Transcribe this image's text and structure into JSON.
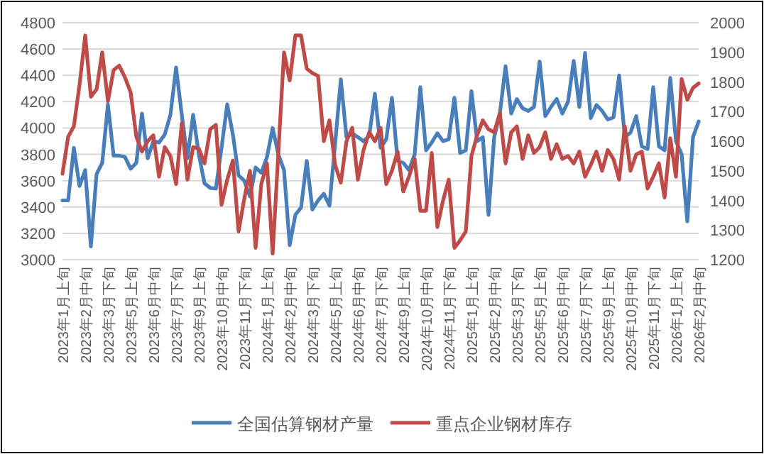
{
  "chart_data": {
    "type": "line",
    "categories": [
      "2023年1月上旬",
      null,
      null,
      null,
      "2023年2月中旬",
      null,
      null,
      null,
      "2023年3月下旬",
      null,
      null,
      null,
      "2023年5月上旬",
      null,
      null,
      null,
      "2023年6月中旬",
      null,
      null,
      null,
      "2023年7月下旬",
      null,
      null,
      null,
      "2023年9月上旬",
      null,
      null,
      null,
      "2023年10月中旬",
      null,
      null,
      null,
      "2023年11月下旬",
      null,
      null,
      null,
      "2024年1月上旬",
      null,
      null,
      null,
      "2024年2月中旬",
      null,
      null,
      null,
      "2024年3月下旬",
      null,
      null,
      null,
      "2024年5月上旬",
      null,
      null,
      null,
      "2024年6月中旬",
      null,
      null,
      null,
      "2024年7月下旬",
      null,
      null,
      null,
      "2024年9月上旬",
      null,
      null,
      null,
      "2024年10月中旬",
      null,
      null,
      null,
      "2024年11月下旬",
      null,
      null,
      null,
      "2025年1月上旬",
      null,
      null,
      null,
      "2025年2月中旬",
      null,
      null,
      null,
      "2025年3月下旬",
      null,
      null,
      null,
      "2025年5月上旬",
      null,
      null,
      null,
      "2025年6月中旬",
      null,
      null,
      null,
      "2025年7月下旬",
      null,
      null,
      null,
      "2025年9月上旬",
      null,
      null,
      null,
      "2025年10月中旬",
      null,
      null,
      null,
      "2025年11月下旬",
      null,
      null,
      null,
      "2026年1月上旬",
      null,
      null,
      null,
      "2026年2月中旬"
    ],
    "series": [
      {
        "name": "全国估算钢材产量",
        "color": "#4a7ebb",
        "values": [
          3450,
          3450,
          3850,
          3560,
          3680,
          3100,
          3650,
          3735,
          4180,
          3790,
          3790,
          3780,
          3690,
          3735,
          4110,
          3770,
          3900,
          3890,
          3950,
          4100,
          4460,
          4100,
          3770,
          4100,
          3800,
          3580,
          3545,
          3540,
          3850,
          4180,
          3950,
          3640,
          3600,
          3480,
          3700,
          3660,
          3780,
          4000,
          3800,
          3680,
          3110,
          3340,
          3395,
          3750,
          3380,
          3450,
          3500,
          3410,
          3880,
          4370,
          3930,
          3960,
          3930,
          3900,
          3940,
          4260,
          3850,
          3915,
          4230,
          3750,
          3735,
          3680,
          3800,
          4310,
          3830,
          3890,
          3960,
          3900,
          3915,
          4230,
          3810,
          3830,
          4280,
          3900,
          3930,
          3340,
          3930,
          4110,
          4470,
          4110,
          4220,
          4150,
          4130,
          4160,
          4505,
          4090,
          4160,
          4220,
          4110,
          4200,
          4510,
          4160,
          4570,
          4075,
          4175,
          4130,
          4065,
          4080,
          4400,
          3930,
          3965,
          4090,
          3860,
          3840,
          4310,
          3860,
          3830,
          4380,
          3900,
          3800,
          3290,
          3930,
          4050
        ]
      },
      {
        "name": "重点企业钢材库存",
        "color": "#be4b48",
        "axis": "y2",
        "values": [
          1490,
          1615,
          1650,
          1790,
          1957,
          1750,
          1775,
          1900,
          1735,
          1840,
          1855,
          1815,
          1765,
          1615,
          1565,
          1600,
          1620,
          1480,
          1580,
          1550,
          1455,
          1660,
          1470,
          1580,
          1575,
          1525,
          1640,
          1655,
          1385,
          1470,
          1535,
          1295,
          1405,
          1500,
          1240,
          1455,
          1525,
          1220,
          1560,
          1900,
          1805,
          1957,
          1957,
          1845,
          1830,
          1820,
          1600,
          1670,
          1520,
          1460,
          1600,
          1645,
          1470,
          1570,
          1630,
          1600,
          1645,
          1455,
          1500,
          1565,
          1430,
          1480,
          1540,
          1365,
          1365,
          1560,
          1310,
          1400,
          1470,
          1240,
          1265,
          1295,
          1550,
          1620,
          1670,
          1640,
          1630,
          1695,
          1525,
          1630,
          1650,
          1540,
          1620,
          1560,
          1580,
          1630,
          1540,
          1590,
          1540,
          1550,
          1525,
          1565,
          1480,
          1520,
          1565,
          1500,
          1570,
          1540,
          1470,
          1650,
          1500,
          1555,
          1565,
          1440,
          1480,
          1525,
          1410,
          1610,
          1480,
          1810,
          1740,
          1780,
          1795
        ]
      }
    ],
    "ylim": [
      3000,
      4800
    ],
    "yticks": [
      3000,
      3200,
      3400,
      3600,
      3800,
      4000,
      4200,
      4400,
      4600,
      4800
    ],
    "y2lim": [
      1200,
      2000
    ],
    "y2ticks": [
      1200,
      1300,
      1400,
      1500,
      1600,
      1700,
      1800,
      1900,
      2000
    ],
    "grid": "y",
    "legend": "bottom"
  }
}
